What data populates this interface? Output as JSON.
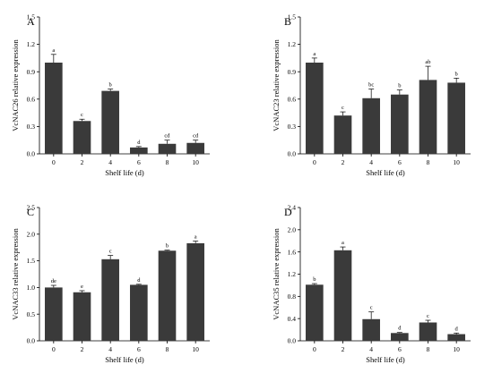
{
  "chart_data": [
    {
      "type": "bar",
      "panel": "A",
      "ylabel": "VcNAC26 relative expression",
      "xlabel": "Shelf life (d)",
      "categories": [
        "0",
        "2",
        "4",
        "6",
        "8",
        "10"
      ],
      "values": [
        1.0,
        0.36,
        0.69,
        0.07,
        0.11,
        0.12
      ],
      "errors": [
        0.09,
        0.02,
        0.02,
        0.01,
        0.04,
        0.03
      ],
      "letters": [
        "a",
        "c",
        "b",
        "d",
        "cd",
        "cd"
      ],
      "ylim": [
        0,
        1.5
      ],
      "yticks": [
        "0.0",
        "0.3",
        "0.6",
        "0.9",
        "1.2",
        "1.5"
      ],
      "grid": false,
      "color": "#3a3a3a"
    },
    {
      "type": "bar",
      "panel": "B",
      "ylabel": "VcNAC23 relative expression",
      "xlabel": "Shelf life (d)",
      "categories": [
        "0",
        "2",
        "4",
        "6",
        "8",
        "10"
      ],
      "values": [
        1.0,
        0.42,
        0.61,
        0.65,
        0.81,
        0.78
      ],
      "errors": [
        0.05,
        0.04,
        0.1,
        0.05,
        0.15,
        0.05
      ],
      "letters": [
        "a",
        "c",
        "bc",
        "b",
        "ab",
        "b"
      ],
      "ylim": [
        0,
        1.5
      ],
      "yticks": [
        "0.0",
        "0.3",
        "0.6",
        "0.9",
        "1.2",
        "1.5"
      ],
      "grid": false,
      "color": "#3a3a3a"
    },
    {
      "type": "bar",
      "panel": "C",
      "ylabel": "VcNAC33 relative expression",
      "xlabel": "Shelf life (d)",
      "categories": [
        "0",
        "2",
        "4",
        "6",
        "8",
        "10"
      ],
      "values": [
        1.0,
        0.91,
        1.53,
        1.05,
        1.69,
        1.83
      ],
      "errors": [
        0.04,
        0.03,
        0.07,
        0.01,
        0.01,
        0.04
      ],
      "letters": [
        "de",
        "e",
        "c",
        "d",
        "b",
        "a"
      ],
      "ylim": [
        0,
        2.5
      ],
      "yticks": [
        "0.0",
        "0.5",
        "1.0",
        "1.5",
        "2.0",
        "2.5"
      ],
      "grid": false,
      "color": "#3a3a3a"
    },
    {
      "type": "bar",
      "panel": "D",
      "ylabel": "VcNAC35 relative expression",
      "xlabel": "Shelf life (d)",
      "categories": [
        "0",
        "2",
        "4",
        "6",
        "8",
        "10"
      ],
      "values": [
        1.01,
        1.63,
        0.39,
        0.14,
        0.33,
        0.12
      ],
      "errors": [
        0.02,
        0.06,
        0.13,
        0.01,
        0.04,
        0.02
      ],
      "letters": [
        "b",
        "a",
        "c",
        "d",
        "c",
        "d"
      ],
      "ylim": [
        0,
        2.4
      ],
      "yticks": [
        "0.0",
        "0.4",
        "0.8",
        "1.2",
        "1.6",
        "2.0",
        "2.4"
      ],
      "grid": false,
      "color": "#3a3a3a"
    }
  ]
}
